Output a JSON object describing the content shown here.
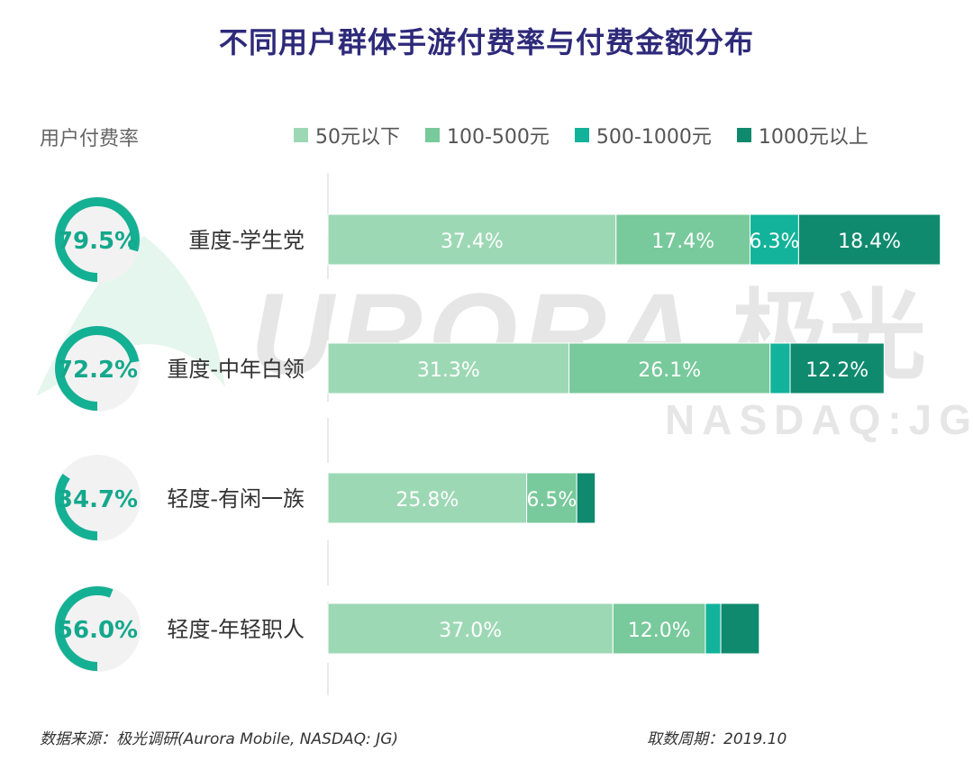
{
  "title": "不同用户群体手游付费率与付费金额分布",
  "rate_header": "用户付费率",
  "watermark": {
    "brand_latin": "URORA",
    "brand_cn": "极光",
    "ticker": "NASDAQ:JG"
  },
  "footer": {
    "source": "数据来源：极光调研(Aurora Mobile, NASDAQ: JG)",
    "period": "取数周期：2019.10"
  },
  "colors": {
    "seg1": "#9dd8b5",
    "seg2": "#78c99b",
    "seg3": "#12b39a",
    "seg4": "#0f8a6e",
    "ring": "#14b094",
    "ring_text": "#14a88c",
    "title": "#2e2a7a"
  },
  "chart_data": {
    "type": "bar",
    "orientation": "horizontal",
    "stacked": true,
    "title": "不同用户群体手游付费率与付费金额分布",
    "categories": [
      "重度-学生党",
      "重度-中年白领",
      "轻度-有闲一族",
      "轻度-年轻职人"
    ],
    "payment_rate": [
      79.5,
      72.2,
      34.7,
      56.0
    ],
    "payment_rate_labels": [
      "79.5%",
      "72.2%",
      "34.7%",
      "56.0%"
    ],
    "series": [
      {
        "name": "50元以下",
        "values": [
          37.4,
          31.3,
          25.8,
          37.0
        ],
        "labels": [
          "37.4%",
          "31.3%",
          "25.8%",
          "37.0%"
        ]
      },
      {
        "name": "100-500元",
        "values": [
          17.4,
          26.1,
          6.5,
          12.0
        ],
        "labels": [
          "17.4%",
          "26.1%",
          "6.5%",
          "12.0%"
        ]
      },
      {
        "name": "500-1000元",
        "values": [
          6.3,
          2.6,
          0,
          2.0
        ],
        "labels": [
          "6.3%",
          "",
          "",
          ""
        ]
      },
      {
        "name": "1000元以上",
        "values": [
          18.4,
          12.2,
          2.4,
          5.0
        ],
        "labels": [
          "18.4%",
          "12.2%",
          "",
          ""
        ]
      }
    ],
    "xlim": [
      0,
      80
    ],
    "legend_position": "top"
  }
}
